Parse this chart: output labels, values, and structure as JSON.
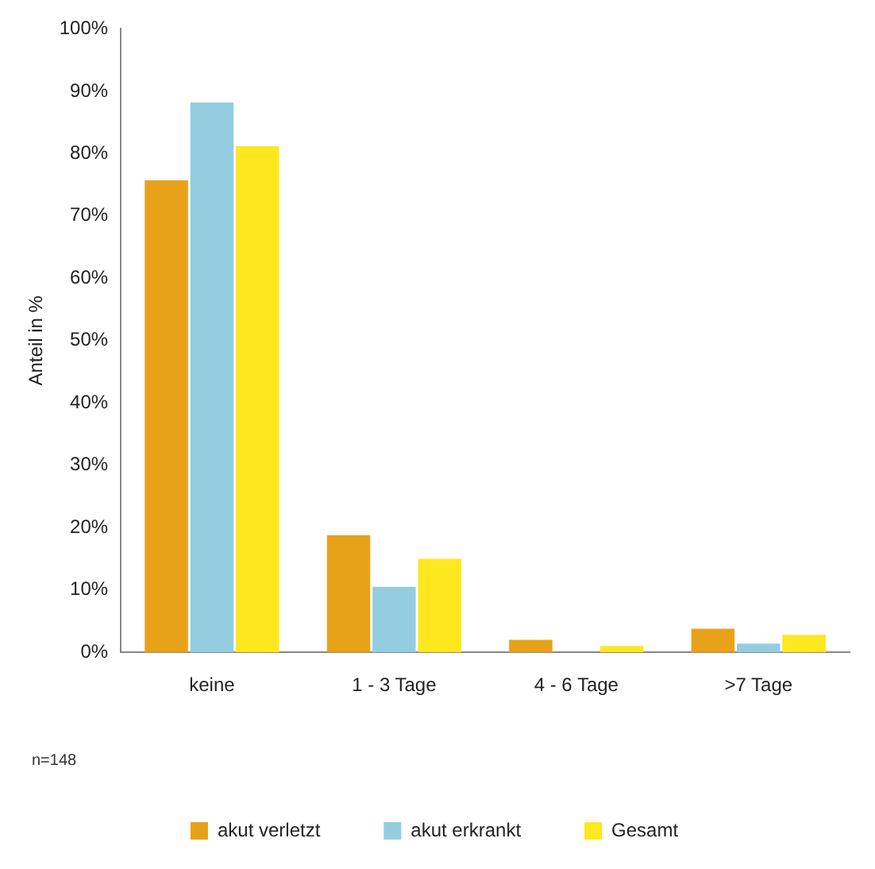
{
  "chart_data": {
    "type": "bar",
    "ylabel": "Anteil in %",
    "categories": [
      "keine",
      "1 - 3 Tage",
      "4 - 6 Tage",
      ">7 Tage"
    ],
    "series": [
      {
        "name": "akut verletzt",
        "color": "#e8a21a",
        "values": [
          75.7,
          18.8,
          2,
          3.8
        ]
      },
      {
        "name": "akut erkrankt",
        "color": "#94cde0",
        "values": [
          88.2,
          10.5,
          0,
          1.4
        ]
      },
      {
        "name": "Gesamt",
        "color": "#fde820",
        "values": [
          81.2,
          15,
          1,
          2.8
        ]
      }
    ],
    "ylim": [
      0,
      100
    ],
    "yticks": [
      {
        "value": 0,
        "label": "0%"
      },
      {
        "value": 10,
        "label": "10%"
      },
      {
        "value": 20,
        "label": "20%"
      },
      {
        "value": 30,
        "label": "30%"
      },
      {
        "value": 40,
        "label": "40%"
      },
      {
        "value": 50,
        "label": "50%"
      },
      {
        "value": 60,
        "label": "60%"
      },
      {
        "value": 70,
        "label": "70%"
      },
      {
        "value": 80,
        "label": "80%"
      },
      {
        "value": 90,
        "label": "90%"
      },
      {
        "value": 100,
        "label": "100%"
      }
    ],
    "grid": false,
    "legend": "bottom",
    "annotations": [
      "n=148"
    ]
  }
}
